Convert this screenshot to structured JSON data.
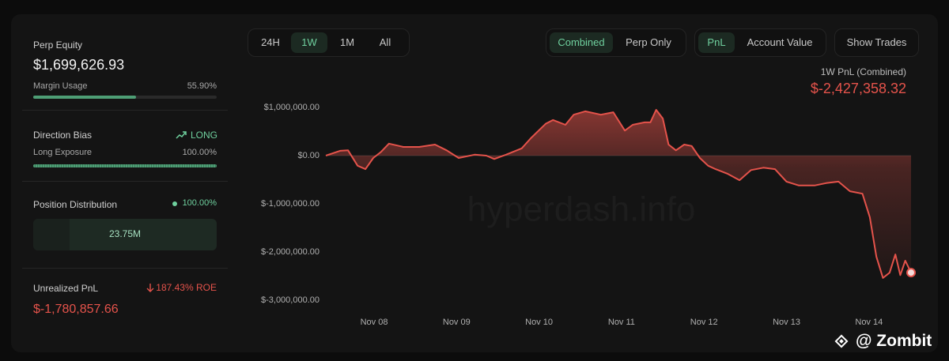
{
  "sidebar": {
    "perp_equity": {
      "label": "Perp Equity",
      "value": "$1,699,626.93"
    },
    "margin_usage": {
      "label": "Margin Usage",
      "value": 55.9,
      "value_label": "55.90%"
    },
    "direction_bias": {
      "label": "Direction Bias",
      "value": "LONG"
    },
    "long_exposure": {
      "label": "Long Exposure",
      "value": 100,
      "value_label": "100.00%"
    },
    "position_distribution": {
      "label": "Position Distribution",
      "share": "100.00%",
      "amount": "23.75M"
    },
    "unrealized_pnl": {
      "label": "Unrealized PnL",
      "roe": "187.43% ROE",
      "value": "$-1,780,857.66"
    }
  },
  "range_tabs": {
    "options": [
      "24H",
      "1W",
      "1M",
      "All"
    ],
    "active": 1
  },
  "mode_tabs": {
    "options": [
      "Combined",
      "Perp Only"
    ],
    "active": 0
  },
  "metric_tabs": {
    "options": [
      "PnL",
      "Account Value"
    ],
    "active": 0
  },
  "show_trades": "Show Trades",
  "overlay_watermark": "@ Zombit",
  "chart_data": {
    "type": "area",
    "title": "1W PnL (Combined)",
    "current_value_label": "$-2,427,358.32",
    "watermark": "hyperdash.info",
    "color": "#e5534b",
    "x": [
      0.415,
      0.588,
      0.684,
      0.8,
      0.895,
      0.99,
      1.086,
      1.18,
      1.355,
      1.547,
      1.738,
      1.88,
      2.026,
      2.218,
      2.36,
      2.457,
      2.6,
      2.79,
      2.9,
      3.08,
      3.17,
      3.32,
      3.42,
      3.56,
      3.75,
      3.9,
      4.04,
      4.135,
      4.28,
      4.35,
      4.42,
      4.5,
      4.57,
      4.66,
      4.76,
      4.85,
      4.95,
      5.05,
      5.14,
      5.29,
      5.43,
      5.57,
      5.72,
      5.86,
      6.0,
      6.15,
      6.34,
      6.48,
      6.63,
      6.77,
      6.92,
      7.01,
      7.09,
      7.17,
      7.25,
      7.32,
      7.38,
      7.44,
      7.51
    ],
    "values": [
      0,
      100000,
      110000,
      -210000,
      -280000,
      -50000,
      80000,
      250000,
      180000,
      180000,
      230000,
      110000,
      -50000,
      20000,
      0,
      -70000,
      20000,
      150000,
      360000,
      660000,
      740000,
      640000,
      850000,
      920000,
      850000,
      900000,
      520000,
      640000,
      690000,
      690000,
      950000,
      770000,
      230000,
      110000,
      230000,
      200000,
      -50000,
      -210000,
      -280000,
      -380000,
      -510000,
      -300000,
      -250000,
      -280000,
      -540000,
      -620000,
      -620000,
      -570000,
      -540000,
      -740000,
      -790000,
      -1280000,
      -2100000,
      -2540000,
      -2430000,
      -2050000,
      -2480000,
      -2180000,
      -2427358.32
    ],
    "xlim": [
      0.415,
      7.51
    ],
    "ylim": [
      -3000000,
      1000000
    ],
    "xticks": [
      {
        "value": 1,
        "label": "Nov 08"
      },
      {
        "value": 2,
        "label": "Nov 09"
      },
      {
        "value": 3,
        "label": "Nov 10"
      },
      {
        "value": 4,
        "label": "Nov 11"
      },
      {
        "value": 5,
        "label": "Nov 12"
      },
      {
        "value": 6,
        "label": "Nov 13"
      },
      {
        "value": 7,
        "label": "Nov 14"
      }
    ],
    "yticks": [
      {
        "value": 1000000,
        "label": "$1,000,000.00"
      },
      {
        "value": 0,
        "label": "$0.00"
      },
      {
        "value": -1000000,
        "label": "$-1,000,000.00"
      },
      {
        "value": -2000000,
        "label": "$-2,000,000.00"
      },
      {
        "value": -3000000,
        "label": "$-3,000,000.00"
      }
    ]
  }
}
